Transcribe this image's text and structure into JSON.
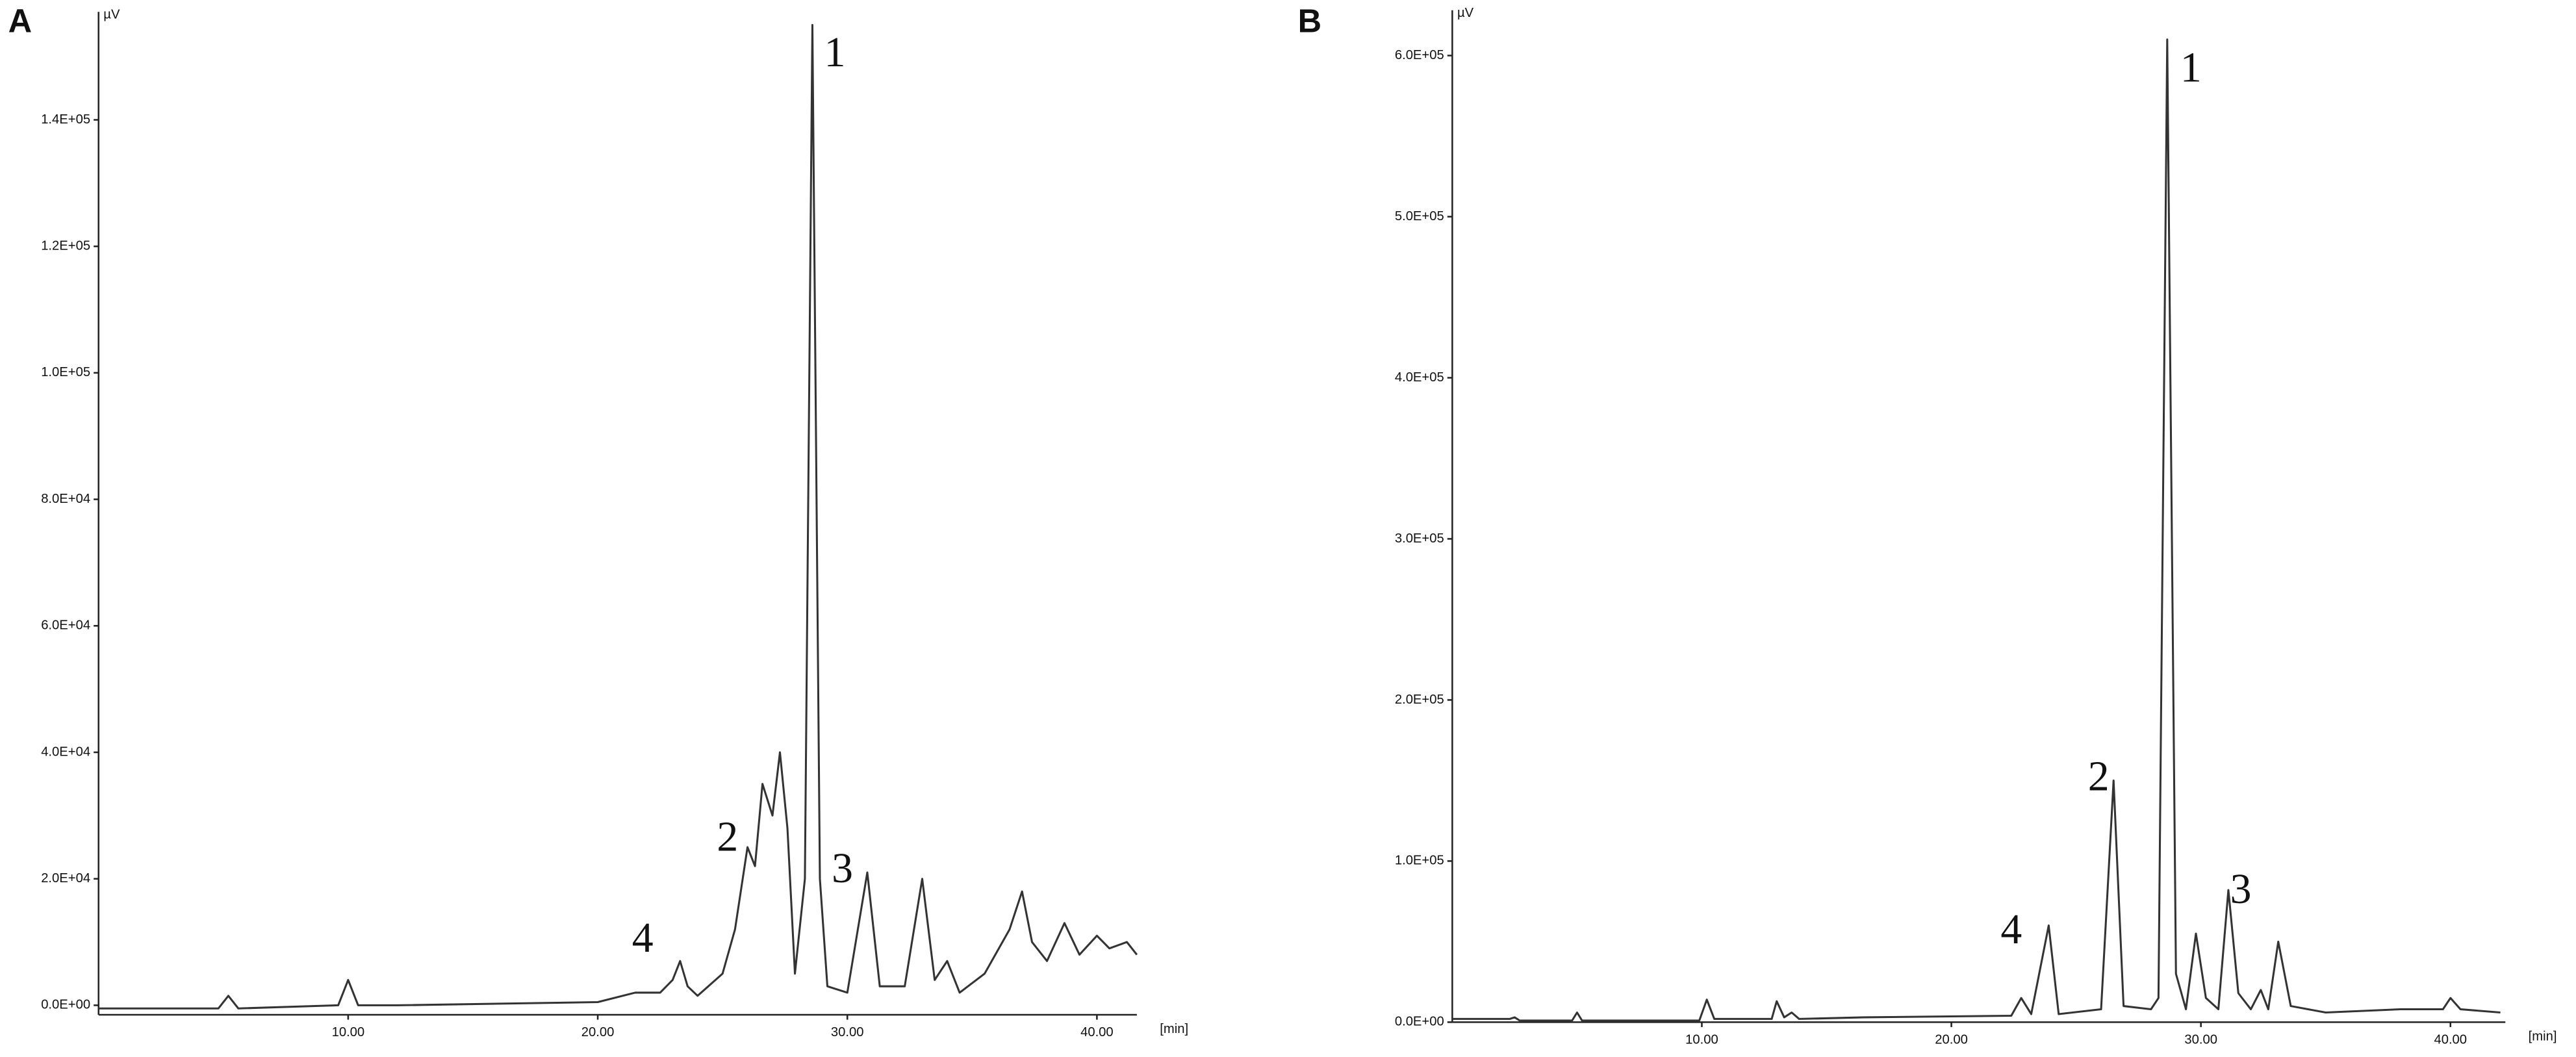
{
  "chart_data": [
    {
      "type": "line",
      "label": "A",
      "y_label": "µV",
      "x_label": "[min]",
      "xlim": [
        0,
        41.6
      ],
      "ylim": [
        -1500,
        155000
      ],
      "xticks": [
        {
          "value": 10,
          "label": "10.00"
        },
        {
          "value": 20,
          "label": "20.00"
        },
        {
          "value": 30,
          "label": "30.00"
        },
        {
          "value": 40,
          "label": "40.00"
        }
      ],
      "yticks": [
        {
          "value": 0,
          "label": "0.0E+00"
        },
        {
          "value": 20000,
          "label": "2.0E+04"
        },
        {
          "value": 40000,
          "label": "4.0E+04"
        },
        {
          "value": 60000,
          "label": "6.0E+04"
        },
        {
          "value": 80000,
          "label": "8.0E+04"
        },
        {
          "value": 100000,
          "label": "1.0E+05"
        },
        {
          "value": 120000,
          "label": "1.2E+05"
        },
        {
          "value": 140000,
          "label": "1.4E+05"
        }
      ],
      "grid": false,
      "series": [
        {
          "color": "#333333",
          "x": [
            0,
            4.8,
            5.2,
            5.6,
            9.6,
            10,
            10.4,
            12,
            20,
            21.5,
            22.5,
            23,
            23.3,
            23.6,
            24,
            25,
            25.5,
            26,
            26.3,
            26.6,
            27,
            27.3,
            27.6,
            27.9,
            28.3,
            28.6,
            28.9,
            29.2,
            30,
            30.8,
            31.3,
            32.3,
            33,
            33.5,
            34,
            34.5,
            35.5,
            36.5,
            37,
            37.4,
            38,
            38.7,
            39.3,
            40,
            40.5,
            41.2,
            41.6
          ],
          "values": [
            -500,
            -500,
            1500,
            -500,
            0,
            4000,
            0,
            0,
            500,
            2000,
            2000,
            4000,
            7000,
            3000,
            1500,
            5000,
            12000,
            25000,
            22000,
            35000,
            30000,
            40000,
            28000,
            5000,
            20000,
            155000,
            20000,
            3000,
            2000,
            21000,
            3000,
            3000,
            20000,
            4000,
            7000,
            2000,
            5000,
            12000,
            18000,
            10000,
            7000,
            13000,
            8000,
            11000,
            9000,
            10000,
            8000
          ]
        }
      ],
      "annotations": [
        {
          "text": "1",
          "x": 29.5,
          "y": 150000
        },
        {
          "text": "2",
          "x": 25.2,
          "y": 26000
        },
        {
          "text": "3",
          "x": 29.8,
          "y": 21000
        },
        {
          "text": "4",
          "x": 21.8,
          "y": 10000
        }
      ]
    },
    {
      "type": "line",
      "label": "B",
      "y_label": "µV",
      "x_label": "[min]",
      "xlim": [
        0,
        42.2
      ],
      "ylim": [
        0,
        620000
      ],
      "xticks": [
        {
          "value": 10,
          "label": "10.00"
        },
        {
          "value": 20,
          "label": "20.00"
        },
        {
          "value": 30,
          "label": "30.00"
        },
        {
          "value": 40,
          "label": "40.00"
        }
      ],
      "yticks": [
        {
          "value": 0,
          "label": "0.0E+00"
        },
        {
          "value": 100000,
          "label": "1.0E+05"
        },
        {
          "value": 200000,
          "label": "2.0E+05"
        },
        {
          "value": 300000,
          "label": "3.0E+05"
        },
        {
          "value": 400000,
          "label": "4.0E+05"
        },
        {
          "value": 500000,
          "label": "5.0E+05"
        },
        {
          "value": 600000,
          "label": "6.0E+05"
        }
      ],
      "grid": false,
      "series": [
        {
          "color": "#333333",
          "x": [
            0,
            2.3,
            2.5,
            2.7,
            4.8,
            5,
            5.2,
            9.9,
            10.2,
            10.5,
            12.8,
            13,
            13.3,
            13.6,
            13.9,
            16.5,
            22.4,
            22.8,
            23.2,
            23.9,
            24.3,
            26,
            26.5,
            26.9,
            28,
            28.3,
            28.65,
            29,
            29.4,
            29.8,
            30.2,
            30.7,
            31.1,
            31.5,
            32,
            32.4,
            32.7,
            33.1,
            33.6,
            35,
            38,
            39.7,
            40,
            40.4,
            42
          ],
          "values": [
            2000,
            2000,
            3000,
            1000,
            1000,
            6000,
            1000,
            1000,
            14000,
            2000,
            2000,
            13000,
            3000,
            6000,
            2000,
            3000,
            4000,
            15000,
            5000,
            60000,
            5000,
            8000,
            150000,
            10000,
            8000,
            15000,
            610000,
            30000,
            8000,
            55000,
            15000,
            8000,
            82000,
            18000,
            8000,
            20000,
            8000,
            50000,
            10000,
            6000,
            8000,
            8000,
            15000,
            8000,
            6000
          ]
        }
      ],
      "annotations": [
        {
          "text": "1",
          "x": 29.6,
          "y": 590000
        },
        {
          "text": "2",
          "x": 25.9,
          "y": 150000
        },
        {
          "text": "3",
          "x": 31.6,
          "y": 80000
        },
        {
          "text": "4",
          "x": 22.4,
          "y": 55000
        }
      ]
    }
  ]
}
